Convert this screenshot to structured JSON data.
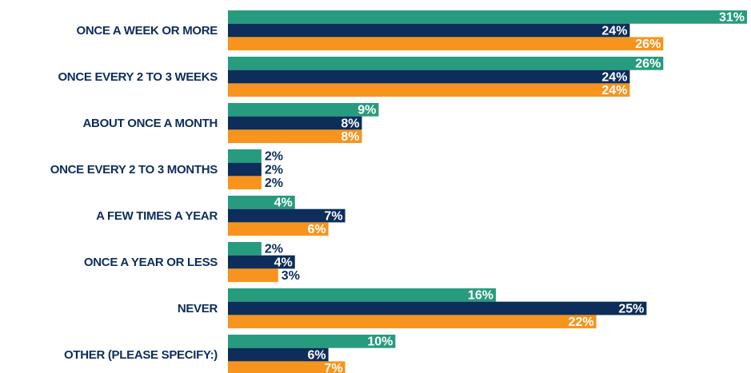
{
  "chart_data": {
    "type": "bar",
    "orientation": "horizontal",
    "categories": [
      "ONCE A WEEK OR MORE",
      "ONCE EVERY 2 TO 3 WEEKS",
      "ABOUT ONCE A MONTH",
      "ONCE EVERY 2 TO 3 MONTHS",
      "A FEW TIMES A YEAR",
      "ONCE A YEAR OR LESS",
      "NEVER",
      "OTHER (PLEASE SPECIFY:)"
    ],
    "series": [
      {
        "color": "#279b7e",
        "values": [
          31,
          26,
          9,
          2,
          4,
          2,
          16,
          10
        ],
        "value_labels": [
          "31%",
          "26%",
          "9%",
          "2%",
          "4%",
          "2%",
          "16%",
          "10%"
        ]
      },
      {
        "color": "#0d2d5a",
        "values": [
          24,
          24,
          8,
          2,
          7,
          4,
          25,
          6
        ],
        "value_labels": [
          "24%",
          "24%",
          "8%",
          "2%",
          "7%",
          "4%",
          "25%",
          "6%"
        ]
      },
      {
        "color": "#f7941d",
        "values": [
          26,
          24,
          8,
          2,
          6,
          3,
          22,
          7
        ],
        "value_labels": [
          "26%",
          "24%",
          "8%",
          "2%",
          "6%",
          "3%",
          "22%",
          "7%"
        ]
      }
    ]
  }
}
